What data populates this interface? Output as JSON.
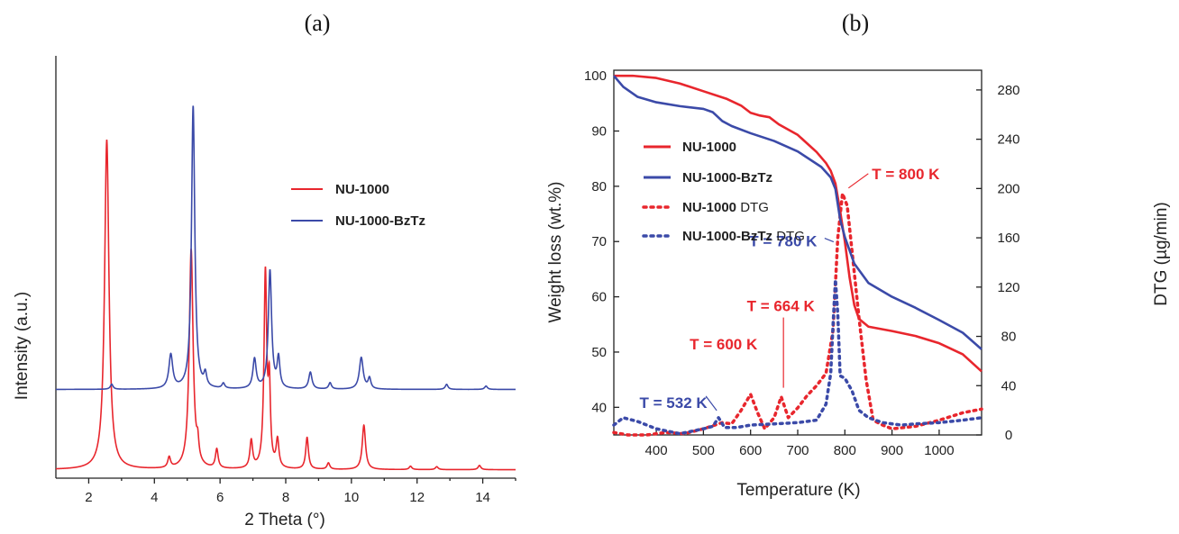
{
  "colors": {
    "red": "#e8262d",
    "blue": "#3b4aa8",
    "axis": "#222222"
  },
  "chart_data": [
    {
      "type": "line",
      "panel_label": "(a)",
      "xlabel": "2 Theta (°)",
      "ylabel": "Intensity (a.u.)",
      "xlim": [
        1,
        15
      ],
      "ylim": [
        0,
        100
      ],
      "x_ticks": [
        2,
        4,
        6,
        8,
        10,
        12,
        14
      ],
      "legend": {
        "placement": "right-middle",
        "entries": [
          "NU-1000",
          "NU-1000-BzTz"
        ]
      },
      "series": [
        {
          "name": "NU-1000",
          "color": "red",
          "baseline": 2,
          "peaks": [
            {
              "x": 2.55,
              "h": 78,
              "w": 0.08
            },
            {
              "x": 4.45,
              "h": 2.5,
              "w": 0.05
            },
            {
              "x": 5.12,
              "h": 52,
              "w": 0.07
            },
            {
              "x": 5.32,
              "h": 4,
              "w": 0.04
            },
            {
              "x": 5.9,
              "h": 4.5,
              "w": 0.05
            },
            {
              "x": 6.95,
              "h": 6.5,
              "w": 0.05
            },
            {
              "x": 7.38,
              "h": 46,
              "w": 0.05
            },
            {
              "x": 7.5,
              "h": 18,
              "w": 0.04
            },
            {
              "x": 7.75,
              "h": 6.5,
              "w": 0.05
            },
            {
              "x": 8.65,
              "h": 7.5,
              "w": 0.05
            },
            {
              "x": 9.3,
              "h": 1.5,
              "w": 0.05
            },
            {
              "x": 10.38,
              "h": 10.5,
              "w": 0.06
            },
            {
              "x": 11.8,
              "h": 0.8,
              "w": 0.05
            },
            {
              "x": 12.6,
              "h": 0.7,
              "w": 0.05
            },
            {
              "x": 13.9,
              "h": 1,
              "w": 0.05
            }
          ]
        },
        {
          "name": "NU-1000-BzTz",
          "color": "blue",
          "baseline": 21,
          "peaks": [
            {
              "x": 2.7,
              "h": 1.2,
              "w": 0.05
            },
            {
              "x": 4.5,
              "h": 8,
              "w": 0.07
            },
            {
              "x": 5.18,
              "h": 67,
              "w": 0.06
            },
            {
              "x": 5.55,
              "h": 3,
              "w": 0.05
            },
            {
              "x": 6.1,
              "h": 1.2,
              "w": 0.05
            },
            {
              "x": 7.05,
              "h": 7,
              "w": 0.06
            },
            {
              "x": 7.52,
              "h": 28,
              "w": 0.06
            },
            {
              "x": 7.78,
              "h": 7,
              "w": 0.05
            },
            {
              "x": 8.75,
              "h": 4,
              "w": 0.06
            },
            {
              "x": 9.35,
              "h": 1.5,
              "w": 0.05
            },
            {
              "x": 10.3,
              "h": 7.5,
              "w": 0.07
            },
            {
              "x": 10.55,
              "h": 2.5,
              "w": 0.05
            },
            {
              "x": 12.9,
              "h": 1.2,
              "w": 0.05
            },
            {
              "x": 14.1,
              "h": 0.8,
              "w": 0.05
            }
          ]
        }
      ]
    },
    {
      "type": "line",
      "panel_label": "(b)",
      "xlabel": "Temperature (K)",
      "ylabel": "Weight loss (wt.%)",
      "y2label": "DTG (µg/min)",
      "xlim": [
        310,
        1090
      ],
      "ylim": [
        35,
        101
      ],
      "y2lim": [
        0,
        296
      ],
      "x_ticks": [
        400,
        500,
        600,
        700,
        800,
        900,
        1000
      ],
      "y_ticks": [
        40,
        50,
        60,
        70,
        80,
        90,
        100
      ],
      "y2_ticks": [
        0,
        40,
        80,
        120,
        160,
        200,
        240,
        280
      ],
      "legend": {
        "placement": "top-left",
        "entries": [
          {
            "name": "NU-1000",
            "suffix": "",
            "color": "red",
            "style": "solid"
          },
          {
            "name": "NU-1000-BzTz",
            "suffix": "",
            "color": "blue",
            "style": "solid"
          },
          {
            "name": "NU-1000",
            "suffix": " DTG",
            "color": "red",
            "style": "dotted"
          },
          {
            "name": "NU-1000-BzTz",
            "suffix": " DTG",
            "color": "blue",
            "style": "dotted"
          }
        ]
      },
      "series": [
        {
          "name": "NU-1000",
          "axis": "left",
          "color": "red",
          "style": "solid",
          "points": [
            [
              310,
              100
            ],
            [
              350,
              100
            ],
            [
              400,
              99.6
            ],
            [
              450,
              98.6
            ],
            [
              500,
              97.2
            ],
            [
              550,
              95.8
            ],
            [
              580,
              94.6
            ],
            [
              600,
              93.3
            ],
            [
              620,
              92.8
            ],
            [
              640,
              92.5
            ],
            [
              660,
              91.2
            ],
            [
              700,
              89.3
            ],
            [
              740,
              86.2
            ],
            [
              760,
              84.2
            ],
            [
              770,
              82.8
            ],
            [
              780,
              80.5
            ],
            [
              790,
              75.5
            ],
            [
              800,
              70
            ],
            [
              810,
              63.5
            ],
            [
              820,
              58.5
            ],
            [
              830,
              56
            ],
            [
              850,
              54.6
            ],
            [
              900,
              53.8
            ],
            [
              950,
              52.9
            ],
            [
              1000,
              51.6
            ],
            [
              1050,
              49.6
            ],
            [
              1090,
              46.5
            ]
          ]
        },
        {
          "name": "NU-1000-BzTz",
          "axis": "left",
          "color": "blue",
          "style": "solid",
          "points": [
            [
              310,
              100
            ],
            [
              330,
              98
            ],
            [
              360,
              96.2
            ],
            [
              400,
              95.2
            ],
            [
              450,
              94.5
            ],
            [
              500,
              94
            ],
            [
              520,
              93.4
            ],
            [
              540,
              91.8
            ],
            [
              560,
              90.9
            ],
            [
              600,
              89.6
            ],
            [
              650,
              88.2
            ],
            [
              700,
              86.3
            ],
            [
              750,
              83.5
            ],
            [
              770,
              81.6
            ],
            [
              780,
              79.5
            ],
            [
              790,
              74
            ],
            [
              800,
              70.8
            ],
            [
              820,
              66
            ],
            [
              850,
              62.5
            ],
            [
              900,
              60
            ],
            [
              950,
              58
            ],
            [
              1000,
              55.8
            ],
            [
              1050,
              53.5
            ],
            [
              1090,
              50.5
            ]
          ]
        },
        {
          "name": "NU-1000 DTG",
          "axis": "right",
          "color": "red",
          "style": "dotted",
          "points": [
            [
              310,
              2
            ],
            [
              340,
              0
            ],
            [
              380,
              0
            ],
            [
              420,
              2
            ],
            [
              460,
              1
            ],
            [
              500,
              5
            ],
            [
              540,
              10
            ],
            [
              560,
              9
            ],
            [
              580,
              20
            ],
            [
              600,
              33
            ],
            [
              615,
              18
            ],
            [
              630,
              5
            ],
            [
              650,
              14
            ],
            [
              665,
              31
            ],
            [
              680,
              14
            ],
            [
              700,
              22
            ],
            [
              720,
              32
            ],
            [
              740,
              40
            ],
            [
              760,
              50
            ],
            [
              775,
              85
            ],
            [
              785,
              160
            ],
            [
              795,
              196
            ],
            [
              805,
              186
            ],
            [
              815,
              150
            ],
            [
              830,
              95
            ],
            [
              845,
              45
            ],
            [
              860,
              12
            ],
            [
              880,
              8
            ],
            [
              900,
              5
            ],
            [
              950,
              7
            ],
            [
              1000,
              12
            ],
            [
              1050,
              18
            ],
            [
              1090,
              21
            ]
          ]
        },
        {
          "name": "NU-1000-BzTz DTG",
          "axis": "right",
          "color": "blue",
          "style": "dotted",
          "points": [
            [
              310,
              8
            ],
            [
              330,
              14
            ],
            [
              360,
              11
            ],
            [
              400,
              5
            ],
            [
              450,
              1
            ],
            [
              500,
              5
            ],
            [
              520,
              7
            ],
            [
              532,
              14
            ],
            [
              545,
              6
            ],
            [
              570,
              6
            ],
            [
              600,
              8
            ],
            [
              650,
              9
            ],
            [
              700,
              10
            ],
            [
              740,
              12
            ],
            [
              760,
              25
            ],
            [
              770,
              50
            ],
            [
              775,
              90
            ],
            [
              780,
              126
            ],
            [
              785,
              98
            ],
            [
              790,
              48
            ],
            [
              800,
              46
            ],
            [
              815,
              36
            ],
            [
              830,
              20
            ],
            [
              850,
              14
            ],
            [
              880,
              10
            ],
            [
              920,
              8
            ],
            [
              950,
              9
            ],
            [
              1000,
              10
            ],
            [
              1050,
              12
            ],
            [
              1090,
              14
            ]
          ]
        }
      ],
      "annotations": [
        {
          "text": "T = 800 K",
          "color": "red",
          "x": 800,
          "y2": 196
        },
        {
          "text": "T = 780 K",
          "color": "blue",
          "x": 780,
          "y2": 126
        },
        {
          "text": "T = 664 K",
          "color": "red",
          "x": 664,
          "y2": 31
        },
        {
          "text": "T = 600 K",
          "color": "red",
          "x": 600,
          "y2": 33
        },
        {
          "text": "T = 532 K",
          "color": "blue",
          "x": 532,
          "y2": 14
        }
      ]
    }
  ]
}
